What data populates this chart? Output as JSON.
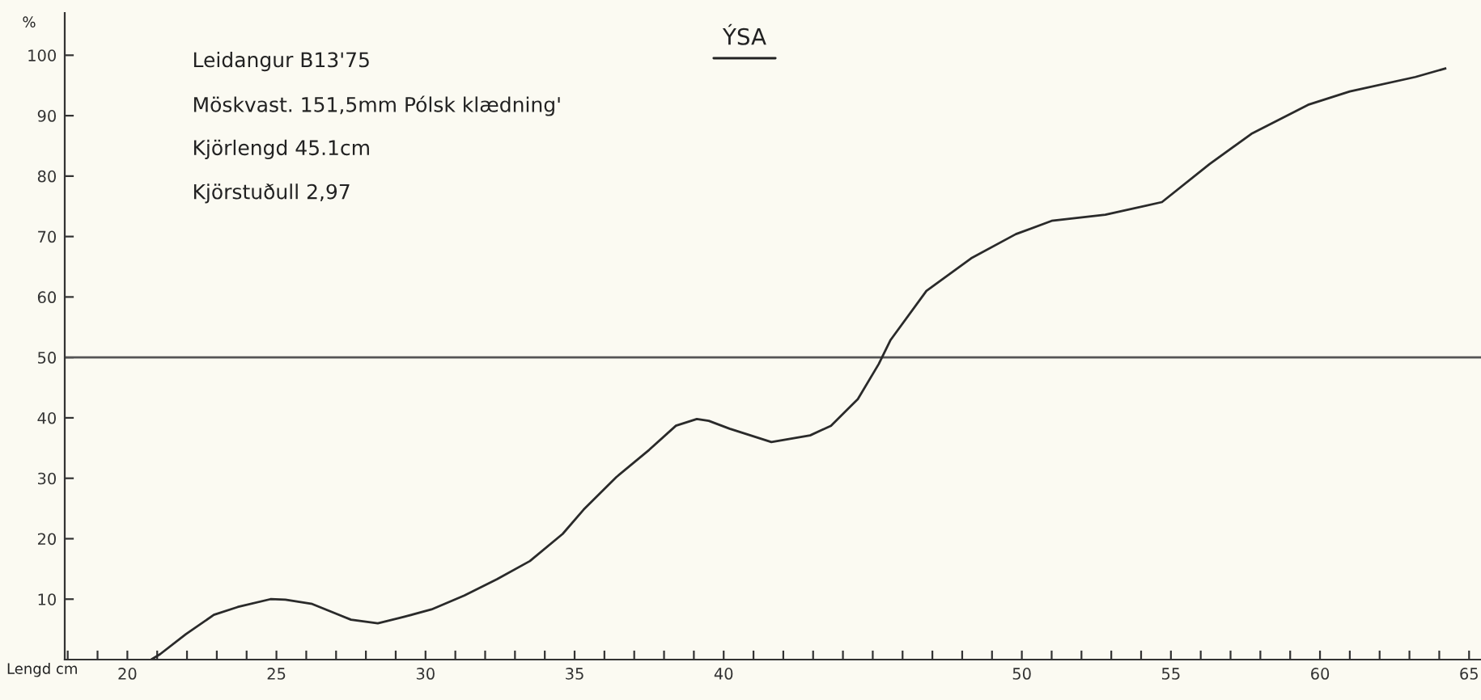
{
  "chart_data": {
    "type": "line",
    "title": "ÝSA",
    "xlabel": "Lengd cm",
    "ylabel": "%",
    "annotations": [
      "Leidangur B13'75",
      "Möskvast. 151,5mm Pólsk klædning'",
      "Kjörlengd 45.1cm",
      "Kjörstuðull 2,97"
    ],
    "series": [
      {
        "color": "#2a2a2a",
        "x": [
          20.8,
          21.1,
          21.96,
          22.9,
          23.7,
          24.8,
          25.3,
          26.2,
          27.5,
          28.4,
          29.3,
          30.2,
          31.3,
          32.4,
          33.5,
          34.6,
          35.3,
          36.4,
          37.5,
          38.4,
          39.1,
          39.5,
          40.2,
          41.6,
          42.9,
          43.6,
          44.5,
          45.2,
          45.6,
          46.8,
          48.3,
          49.8,
          51.0,
          52.8,
          54.7,
          56.3,
          57.7,
          59.6,
          61.0,
          63.2,
          64.2
        ],
        "values": [
          0,
          0.9,
          4.2,
          7.4,
          8.7,
          10.0,
          9.9,
          9.2,
          6.6,
          6.0,
          7.1,
          8.3,
          10.6,
          13.3,
          16.3,
          20.8,
          24.8,
          30.2,
          34.7,
          38.7,
          39.8,
          39.5,
          38.2,
          36.0,
          37.1,
          38.7,
          43.1,
          48.9,
          52.9,
          61.0,
          66.4,
          70.4,
          72.6,
          73.6,
          75.7,
          82.0,
          87.0,
          91.8,
          94.0,
          96.4,
          97.8
        ]
      }
    ],
    "ref_lines": [
      {
        "axis": "y",
        "value": 50,
        "color": "#555555"
      }
    ],
    "xlim": [
      17.9,
      65.4
    ],
    "ylim": [
      0,
      107
    ],
    "xticks": [
      {
        "value": 18,
        "label": null
      },
      {
        "value": 19,
        "label": null
      },
      20,
      {
        "value": 21,
        "label": null
      },
      {
        "value": 22,
        "label": null
      },
      {
        "value": 23,
        "label": null
      },
      {
        "value": 24,
        "label": null
      },
      25,
      {
        "value": 26,
        "label": null
      },
      {
        "value": 27,
        "label": null
      },
      {
        "value": 28,
        "label": null
      },
      {
        "value": 29,
        "label": null
      },
      30,
      {
        "value": 31,
        "label": null
      },
      {
        "value": 32,
        "label": null
      },
      {
        "value": 33,
        "label": null
      },
      {
        "value": 34,
        "label": null
      },
      35,
      {
        "value": 36,
        "label": null
      },
      {
        "value": 37,
        "label": null
      },
      {
        "value": 38,
        "label": null
      },
      {
        "value": 39,
        "label": null
      },
      40,
      {
        "value": 41,
        "label": null
      },
      {
        "value": 42,
        "label": null
      },
      {
        "value": 43,
        "label": null
      },
      {
        "value": 44,
        "label": null
      },
      {
        "value": 45,
        "label": null
      },
      {
        "value": 46,
        "label": null
      },
      {
        "value": 47,
        "label": null
      },
      {
        "value": 48,
        "label": null
      },
      {
        "value": 49,
        "label": null
      },
      50,
      {
        "value": 51,
        "label": null
      },
      {
        "value": 52,
        "label": null
      },
      {
        "value": 53,
        "label": null
      },
      {
        "value": 54,
        "label": null
      },
      55,
      {
        "value": 56,
        "label": null
      },
      {
        "value": 57,
        "label": null
      },
      {
        "value": 58,
        "label": null
      },
      {
        "value": 59,
        "label": null
      },
      60,
      {
        "value": 61,
        "label": null
      },
      {
        "value": 62,
        "label": null
      },
      {
        "value": 63,
        "label": null
      },
      {
        "value": 64,
        "label": null
      },
      65
    ],
    "yticks": [
      10,
      20,
      30,
      40,
      50,
      60,
      70,
      80,
      90,
      100
    ],
    "grid": false,
    "legend": false,
    "marker": "none",
    "line_style": "solid"
  }
}
